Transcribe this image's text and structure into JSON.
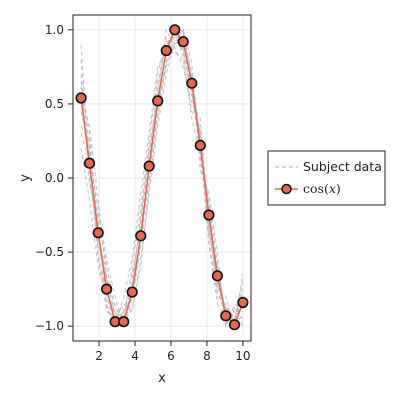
{
  "chart_data": {
    "type": "line",
    "xlabel": "x",
    "ylabel": "y",
    "xlim": [
      0.55,
      10.45
    ],
    "ylim": [
      -1.1,
      1.1
    ],
    "x_ticks": [
      2,
      4,
      6,
      8,
      10
    ],
    "y_ticks": [
      1.0,
      0.5,
      0.0,
      -0.5,
      -1.0
    ],
    "x_tick_labels": [
      "2",
      "4",
      "6",
      "8",
      "10"
    ],
    "y_tick_labels": [
      "1.0",
      "0.5",
      "0.0",
      "−0.5",
      "−1.0"
    ],
    "grid": true,
    "legend_position": "right",
    "series": [
      {
        "name": "cos(x)",
        "color": "#e8664f",
        "marker": "circle",
        "x": [
          1.0,
          1.47,
          1.95,
          2.42,
          2.89,
          3.37,
          3.84,
          4.32,
          4.79,
          5.26,
          5.74,
          6.21,
          6.68,
          7.16,
          7.63,
          8.11,
          8.58,
          9.05,
          9.53,
          10.0
        ],
        "y": [
          0.54,
          0.1,
          -0.37,
          -0.75,
          -0.97,
          -0.97,
          -0.77,
          -0.39,
          0.08,
          0.52,
          0.86,
          1.0,
          0.92,
          0.64,
          0.22,
          -0.25,
          -0.66,
          -0.93,
          -0.99,
          -0.84
        ]
      }
    ],
    "subject_series": {
      "name": "Subject data",
      "color": "#bbbbbb",
      "style": "dashed",
      "x": [
        1.0,
        1.47,
        1.95,
        2.42,
        2.89,
        3.37,
        3.84,
        4.32,
        4.79,
        5.26,
        5.74,
        6.21,
        6.68,
        7.16,
        7.63,
        8.11,
        8.58,
        9.05,
        9.53,
        10.0
      ],
      "lines": [
        [
          0.62,
          0.05,
          -0.45,
          -0.68,
          -0.92,
          -1.0,
          -0.7,
          -0.3,
          0.15,
          0.6,
          0.92,
          0.95,
          0.85,
          0.55,
          0.3,
          -0.35,
          -0.72,
          -0.88,
          -1.0,
          -0.78
        ],
        [
          0.45,
          0.2,
          -0.3,
          -0.85,
          -1.0,
          -0.9,
          -0.82,
          -0.45,
          0.0,
          0.45,
          0.8,
          1.0,
          0.98,
          0.7,
          0.12,
          -0.15,
          -0.58,
          -0.98,
          -0.92,
          -0.9
        ],
        [
          0.7,
          -0.05,
          -0.25,
          -0.6,
          -0.88,
          -0.95,
          -0.6,
          -0.2,
          0.25,
          0.7,
          0.95,
          0.85,
          0.8,
          0.45,
          0.35,
          -0.4,
          -0.8,
          -0.85,
          -0.95,
          -0.7
        ],
        [
          0.35,
          0.25,
          -0.5,
          -0.9,
          -0.95,
          -0.85,
          -0.9,
          -0.55,
          -0.1,
          0.35,
          0.7,
          0.92,
          1.0,
          0.78,
          0.05,
          -0.1,
          -0.5,
          -1.0,
          -0.88,
          -0.95
        ],
        [
          0.8,
          0.15,
          -0.2,
          -0.55,
          -0.8,
          -1.0,
          -0.75,
          -0.25,
          0.2,
          0.55,
          1.0,
          0.88,
          0.75,
          0.5,
          0.4,
          -0.3,
          -0.75,
          -0.8,
          -1.0,
          -0.65
        ],
        [
          0.2,
          -0.15,
          -0.6,
          -0.8,
          -1.0,
          -0.8,
          -0.55,
          -0.1,
          0.3,
          0.75,
          0.85,
          1.0,
          0.9,
          0.6,
          0.2,
          -0.45,
          -0.85,
          -0.95,
          -0.9,
          -1.0
        ],
        [
          0.55,
          0.35,
          -0.15,
          -0.7,
          -0.85,
          -0.98,
          -0.88,
          -0.6,
          -0.05,
          0.4,
          0.78,
          0.9,
          0.95,
          0.7,
          0.25,
          -0.2,
          -0.62,
          -0.9,
          -0.98,
          -0.75
        ],
        [
          0.9,
          0.0,
          -0.4,
          -0.65,
          -0.95,
          -0.9,
          -0.65,
          -0.35,
          0.1,
          0.65,
          0.9,
          0.98,
          0.82,
          0.4,
          0.15,
          -0.3,
          -0.7,
          -1.0,
          -0.85,
          -0.88
        ],
        [
          0.3,
          0.1,
          -0.55,
          -0.78,
          -0.9,
          -1.0,
          -0.8,
          -0.4,
          0.05,
          0.5,
          0.75,
          0.95,
          1.0,
          0.65,
          0.28,
          -0.38,
          -0.6,
          -0.92,
          -0.96,
          -0.8
        ],
        [
          0.65,
          0.3,
          -0.35,
          -0.88,
          -0.98,
          -0.92,
          -0.72,
          -0.28,
          0.18,
          0.48,
          0.88,
          1.0,
          0.86,
          0.58,
          0.18,
          -0.22,
          -0.78,
          -0.86,
          -1.0,
          -0.92
        ]
      ]
    }
  },
  "legend": {
    "subject_label": "Subject data",
    "fit_label": "cos(𝑥)"
  }
}
